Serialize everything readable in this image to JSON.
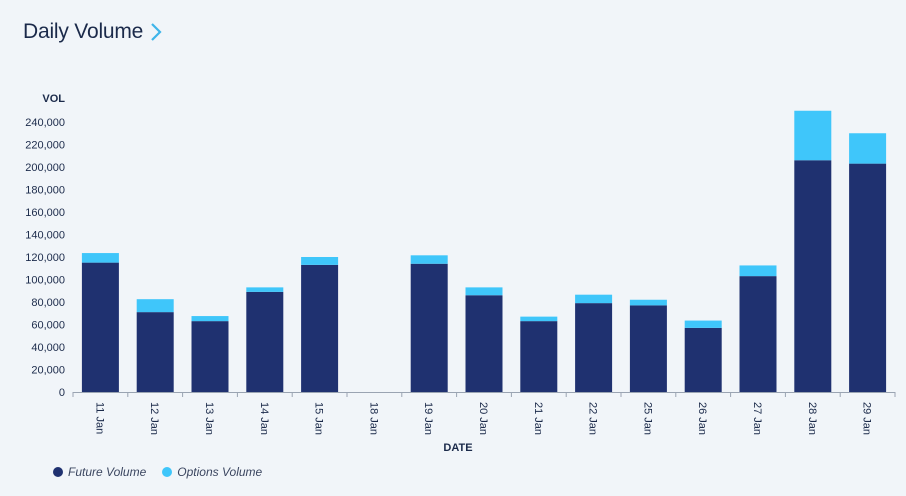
{
  "header": {
    "title": "Daily Volume",
    "chevron_icon": "chevron-right-icon"
  },
  "colors": {
    "future": "#1f3170",
    "options": "#3fc6fa",
    "accent": "#3fb5e9",
    "axis": "#9aa4b2",
    "text": "#1b2a4a"
  },
  "chart_data": {
    "type": "bar",
    "stacked": true,
    "title": "Daily Volume",
    "xlabel": "DATE",
    "ylabel": "VOL",
    "ylim": [
      0,
      250000
    ],
    "yticks": [
      0,
      20000,
      40000,
      60000,
      80000,
      100000,
      120000,
      140000,
      160000,
      180000,
      200000,
      220000,
      240000
    ],
    "ytick_labels": [
      "0",
      "20,000",
      "40,000",
      "60,000",
      "80,000",
      "100,000",
      "120,000",
      "140,000",
      "160,000",
      "180,000",
      "200,000",
      "220,000",
      "240,000"
    ],
    "categories": [
      "11 Jan",
      "12 Jan",
      "13 Jan",
      "14 Jan",
      "15 Jan",
      "18 Jan",
      "19 Jan",
      "20 Jan",
      "21 Jan",
      "22 Jan",
      "25 Jan",
      "26 Jan",
      "27 Jan",
      "28 Jan",
      "29 Jan"
    ],
    "series": [
      {
        "name": "Future Volume",
        "values": [
          115000,
          71000,
          63000,
          89000,
          113000,
          0,
          114000,
          86000,
          63000,
          79000,
          77000,
          57000,
          103000,
          206000,
          203000
        ]
      },
      {
        "name": "Options Volume",
        "values": [
          8500,
          11500,
          4500,
          4000,
          7000,
          0,
          7500,
          7000,
          4000,
          7500,
          5000,
          6500,
          9500,
          44000,
          27000
        ]
      }
    ],
    "grid": false,
    "legend_position": "bottom-left"
  },
  "legend": {
    "items": [
      {
        "label": "Future Volume",
        "color": "#1f3170"
      },
      {
        "label": "Options Volume",
        "color": "#3fc6fa"
      }
    ]
  }
}
